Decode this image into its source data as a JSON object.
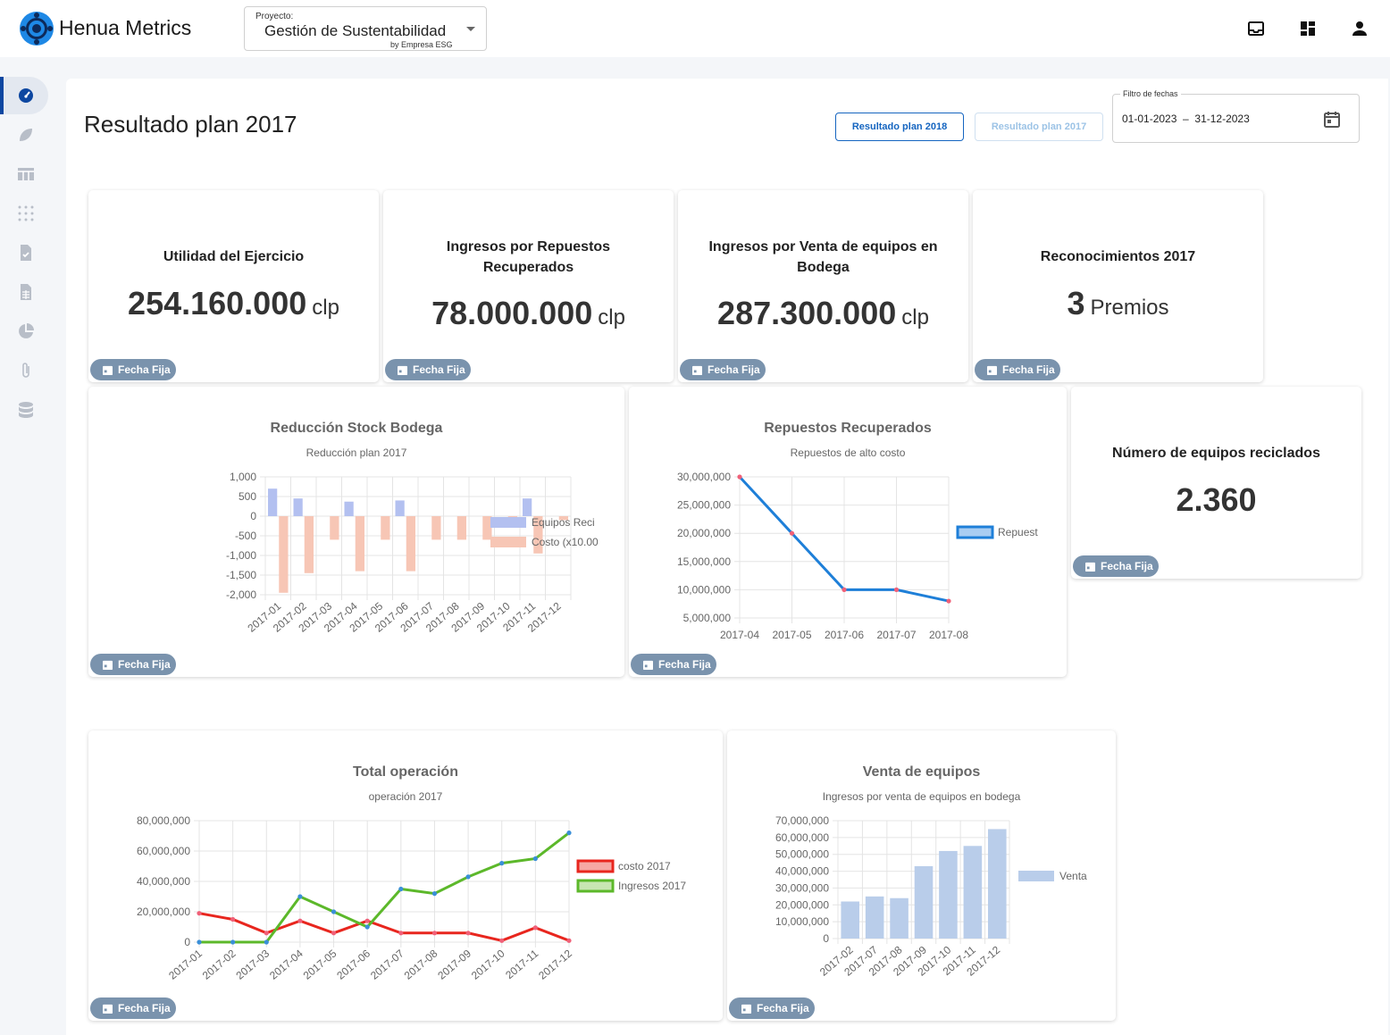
{
  "app": {
    "brand": "Henua Metrics",
    "project_label": "Proyecto:",
    "project_value": "Gestión de Sustentabilidad",
    "project_sub": "by Empresa ESG",
    "icons": [
      "inbox-icon",
      "dashboard-grid-icon",
      "user-icon"
    ]
  },
  "sidebar": {
    "items": [
      "dashboard-icon",
      "leaf-icon",
      "table-icon",
      "dots-grid-icon",
      "task-file-icon",
      "spreadsheet-file-icon",
      "pie-chart-icon",
      "attachment-icon",
      "database-icon"
    ]
  },
  "header": {
    "title": "Resultado plan 2017",
    "buttons": [
      "Resultado plan 2018",
      "Resultado plan 2017"
    ],
    "date_filter_label": "Filtro de fechas",
    "date_filter_value": "01-01-2023  –  31-12-2023"
  },
  "chip_label": "Fecha Fija",
  "kpis": [
    {
      "title": "Utilidad del Ejercicio",
      "value": "254.160.000",
      "unit": "clp"
    },
    {
      "title": "Ingresos por Repuestos Recuperados",
      "value": "78.000.000",
      "unit": "clp"
    },
    {
      "title": "Ingresos por Venta de equipos en Bodega",
      "value": "287.300.000",
      "unit": "clp"
    },
    {
      "title": "Reconocimientos 2017",
      "value": "3",
      "unit": "Premios"
    },
    {
      "title": "Número de equipos reciclados",
      "value": "2.360",
      "unit": ""
    }
  ],
  "chart_data": [
    {
      "type": "bar",
      "title": "Reducción Stock Bodega",
      "subtitle": "Reducción plan 2017",
      "categories": [
        "2017-01",
        "2017-02",
        "2017-03",
        "2017-04",
        "2017-05",
        "2017-06",
        "2017-07",
        "2017-08",
        "2017-09",
        "2017-10",
        "2017-11",
        "2017-12"
      ],
      "series": [
        {
          "name": "Equipos Reci",
          "color": "#b3c0f0",
          "values": [
            700,
            450,
            0,
            370,
            0,
            400,
            0,
            0,
            0,
            0,
            450,
            0
          ]
        },
        {
          "name": "Costo (x10.00",
          "color": "#f7c6b5",
          "values": [
            -1950,
            -1450,
            -600,
            -1400,
            -600,
            -1400,
            -600,
            -600,
            -600,
            -100,
            -950,
            -100
          ]
        }
      ],
      "yticks": [
        1000,
        500,
        0,
        -500,
        -1000,
        -1500,
        -2000
      ],
      "ytick_labels": [
        "1,000",
        "500",
        "0",
        "-500",
        "-1,000",
        "-1,500",
        "-2,000"
      ],
      "ylim": [
        -2000,
        1000
      ],
      "legend": "right",
      "grid": true
    },
    {
      "type": "line",
      "title": "Repuestos Recuperados",
      "subtitle": "Repuestos de alto costo",
      "categories": [
        "2017-04",
        "2017-05",
        "2017-06",
        "2017-07",
        "2017-08"
      ],
      "series": [
        {
          "name": "Repuest",
          "color": "#1e7fd8",
          "values": [
            30000000,
            20000000,
            10000000,
            10000000,
            8000000
          ]
        }
      ],
      "yticks": [
        30000000,
        25000000,
        20000000,
        15000000,
        10000000,
        5000000
      ],
      "ytick_labels": [
        "30,000,000",
        "25,000,000",
        "20,000,000",
        "15,000,000",
        "10,000,000",
        "5,000,000"
      ],
      "ylim": [
        5000000,
        30000000
      ],
      "legend": "right",
      "grid": true
    },
    {
      "type": "line",
      "title": "Total operación",
      "subtitle": "operación 2017",
      "categories": [
        "2017-01",
        "2017-02",
        "2017-03",
        "2017-04",
        "2017-05",
        "2017-06",
        "2017-07",
        "2017-08",
        "2017-09",
        "2017-10",
        "2017-11",
        "2017-12"
      ],
      "series": [
        {
          "name": "costo 2017",
          "color": "#e8261e",
          "values": [
            19000000,
            15000000,
            6000000,
            14000000,
            6000000,
            14000000,
            6000000,
            6000000,
            6000000,
            1000000,
            9500000,
            1000000
          ]
        },
        {
          "name": "Ingresos 2017",
          "color": "#5cb82a",
          "values": [
            0,
            0,
            0,
            30000000,
            20000000,
            10000000,
            35000000,
            32000000,
            43000000,
            52000000,
            55000000,
            72000000
          ]
        }
      ],
      "yticks": [
        80000000,
        60000000,
        40000000,
        20000000,
        0
      ],
      "ytick_labels": [
        "80,000,000",
        "60,000,000",
        "40,000,000",
        "20,000,000",
        "0"
      ],
      "ylim": [
        0,
        80000000
      ],
      "legend": "right",
      "grid": true
    },
    {
      "type": "bar",
      "title": "Venta de equipos",
      "subtitle": "Ingresos por venta de equipos en bodega",
      "categories": [
        "2017-02",
        "2017-07",
        "2017-08",
        "2017-09",
        "2017-10",
        "2017-11",
        "2017-12"
      ],
      "series": [
        {
          "name": "Venta",
          "color": "#b9cdea",
          "values": [
            22000000,
            25000000,
            24000000,
            43000000,
            52000000,
            55000000,
            65000000
          ]
        }
      ],
      "yticks": [
        70000000,
        60000000,
        50000000,
        40000000,
        30000000,
        20000000,
        10000000,
        0
      ],
      "ytick_labels": [
        "70,000,000",
        "60,000,000",
        "50,000,000",
        "40,000,000",
        "30,000,000",
        "20,000,000",
        "10,000,000",
        "0"
      ],
      "ylim": [
        0,
        70000000
      ],
      "legend": "right",
      "grid": true
    }
  ]
}
